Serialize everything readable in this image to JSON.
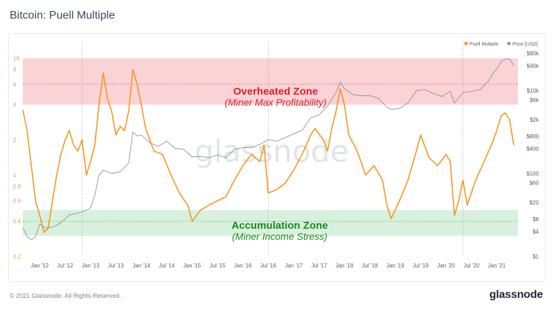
{
  "title": "Bitcoin: Puell Multiple",
  "footer": {
    "copyright": "© 2021 Glassnode. All Rights Reserved.",
    "brand": "glassnode"
  },
  "watermark": "glassnode",
  "colors": {
    "puell": "#f7931a",
    "price": "#8a8f96",
    "overheated_fill": "#f9d3d6",
    "overheated_line": "#ea6b76",
    "overheated_text": "#e0202c",
    "accum_fill": "#d8f1df",
    "accum_line": "#5bbf74",
    "accum_text": "#1c8a1c"
  },
  "zones": {
    "overheated": {
      "title": "Overheated Zone",
      "subtitle": "(Miner Max Profitability)",
      "range": [
        4,
        10
      ]
    },
    "accumulation": {
      "title": "Accumulation Zone",
      "subtitle": "(Miner Income Stress)",
      "range": [
        0.3,
        0.5
      ]
    }
  },
  "chart_data": {
    "type": "line",
    "x_range": [
      "2011-09",
      "2021-06"
    ],
    "x_ticks": [
      "Jan '12",
      "Jul '12",
      "Jan '13",
      "Jul '13",
      "Jan '14",
      "Jul '14",
      "Jan '15",
      "Jul '15",
      "Jan '16",
      "Jul '16",
      "Jan '17",
      "Jul '17",
      "Jan '18",
      "Jul '18",
      "Jan '19",
      "Jul '19",
      "Jan '20",
      "Jul '20",
      "Jan '21"
    ],
    "left_axis": {
      "scale": "log",
      "ticks": [
        "10",
        "8",
        "6",
        "4",
        "2",
        "1",
        "0.8",
        "0.6",
        "0.4",
        "0.2"
      ],
      "range": [
        0.2,
        12
      ]
    },
    "right_axis": {
      "scale": "log",
      "ticks": [
        "$80k",
        "$40k",
        "$10k",
        "$6k",
        "$2k",
        "$800",
        "$400",
        "$100",
        "$60",
        "$20",
        "$8",
        "$4",
        "$1"
      ],
      "range": [
        1,
        100000
      ]
    },
    "legend": {
      "placement": "top-right",
      "entries": [
        "Puell Multiple",
        "Price [USD]"
      ]
    },
    "series": [
      {
        "name": "Puell Multiple",
        "x": [
          "2011-09",
          "2011-10",
          "2011-11",
          "2011-12",
          "2012-01",
          "2012-02",
          "2012-03",
          "2012-04",
          "2012-05",
          "2012-06",
          "2012-07",
          "2012-08",
          "2012-09",
          "2012-10",
          "2012-11",
          "2012-12",
          "2013-01",
          "2013-02",
          "2013-03",
          "2013-04",
          "2013-05",
          "2013-06",
          "2013-07",
          "2013-08",
          "2013-09",
          "2013-10",
          "2013-11",
          "2013-12",
          "2014-01",
          "2014-02",
          "2014-03",
          "2014-04",
          "2014-06",
          "2014-08",
          "2014-10",
          "2014-12",
          "2015-01",
          "2015-03",
          "2015-05",
          "2015-07",
          "2015-09",
          "2015-11",
          "2016-01",
          "2016-03",
          "2016-05",
          "2016-06",
          "2016-07",
          "2016-09",
          "2016-11",
          "2017-01",
          "2017-03",
          "2017-05",
          "2017-06",
          "2017-08",
          "2017-09",
          "2017-10",
          "2017-11",
          "2017-12",
          "2018-01",
          "2018-02",
          "2018-04",
          "2018-06",
          "2018-08",
          "2018-10",
          "2018-11",
          "2018-12",
          "2019-02",
          "2019-04",
          "2019-06",
          "2019-07",
          "2019-09",
          "2019-11",
          "2020-01",
          "2020-02",
          "2020-03",
          "2020-04",
          "2020-05",
          "2020-06",
          "2020-08",
          "2020-10",
          "2020-12",
          "2021-01",
          "2021-02",
          "2021-03",
          "2021-04",
          "2021-05"
        ],
        "values": [
          3.6,
          2.4,
          1.2,
          0.6,
          0.45,
          0.32,
          0.35,
          0.6,
          1.0,
          1.5,
          2.0,
          2.4,
          1.8,
          1.6,
          2.0,
          1.0,
          1.3,
          1.8,
          4.0,
          7.5,
          4.5,
          3.5,
          2.2,
          2.6,
          2.4,
          3.5,
          8.0,
          6.0,
          4.0,
          2.5,
          2.0,
          1.6,
          1.5,
          1.0,
          0.7,
          0.55,
          0.4,
          0.5,
          0.55,
          0.6,
          0.65,
          0.9,
          1.2,
          1.5,
          1.3,
          1.8,
          0.7,
          0.75,
          0.85,
          1.1,
          1.5,
          2.2,
          2.5,
          2.0,
          1.6,
          2.5,
          3.5,
          5.5,
          4.0,
          2.2,
          1.6,
          1.0,
          1.2,
          0.9,
          0.55,
          0.42,
          0.6,
          0.9,
          1.6,
          2.2,
          1.4,
          1.2,
          1.5,
          1.3,
          0.45,
          0.6,
          0.9,
          0.55,
          0.9,
          1.3,
          1.9,
          2.4,
          3.2,
          3.4,
          3.0,
          1.8
        ]
      },
      {
        "name": "Price [USD]",
        "x": [
          "2011-09",
          "2011-10",
          "2011-11",
          "2011-12",
          "2012-01",
          "2012-02",
          "2012-04",
          "2012-06",
          "2012-08",
          "2012-10",
          "2012-12",
          "2013-01",
          "2013-02",
          "2013-03",
          "2013-04",
          "2013-06",
          "2013-08",
          "2013-10",
          "2013-11",
          "2013-12",
          "2014-01",
          "2014-03",
          "2014-05",
          "2014-07",
          "2014-09",
          "2014-11",
          "2015-01",
          "2015-03",
          "2015-05",
          "2015-07",
          "2015-09",
          "2015-11",
          "2016-01",
          "2016-03",
          "2016-05",
          "2016-07",
          "2016-09",
          "2016-11",
          "2017-01",
          "2017-03",
          "2017-05",
          "2017-07",
          "2017-09",
          "2017-11",
          "2017-12",
          "2018-01",
          "2018-03",
          "2018-05",
          "2018-07",
          "2018-09",
          "2018-11",
          "2018-12",
          "2019-02",
          "2019-04",
          "2019-06",
          "2019-08",
          "2019-10",
          "2019-12",
          "2020-02",
          "2020-03",
          "2020-05",
          "2020-07",
          "2020-09",
          "2020-11",
          "2020-12",
          "2021-01",
          "2021-02",
          "2021-03",
          "2021-04",
          "2021-05"
        ],
        "values": [
          5,
          3,
          2.5,
          3,
          6,
          5,
          5,
          6.5,
          10,
          11,
          13,
          15,
          30,
          90,
          120,
          100,
          110,
          180,
          1000,
          800,
          850,
          550,
          450,
          600,
          400,
          380,
          250,
          260,
          240,
          280,
          240,
          380,
          420,
          420,
          500,
          650,
          600,
          730,
          900,
          1100,
          2200,
          2600,
          4200,
          9000,
          16000,
          11000,
          8000,
          7500,
          7500,
          6500,
          4000,
          3500,
          3700,
          5000,
          10000,
          10500,
          8500,
          7200,
          9500,
          5000,
          9000,
          9500,
          10500,
          17000,
          25000,
          33000,
          50000,
          57000,
          58000,
          40000
        ]
      }
    ]
  }
}
